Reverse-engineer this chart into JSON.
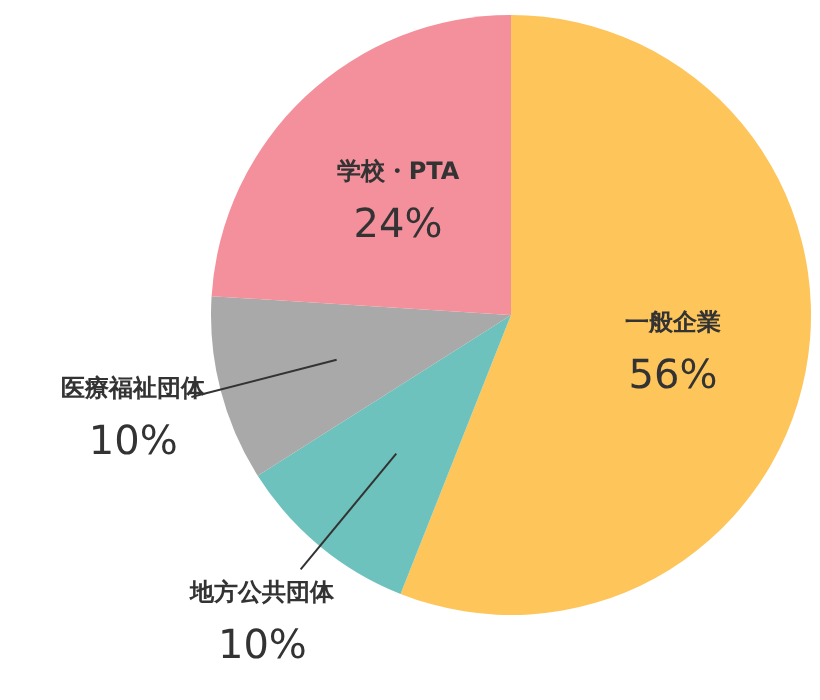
{
  "chart_data": {
    "type": "pie",
    "categories": [
      "一般企業",
      "地方公共団体",
      "医療福祉団体",
      "学校・PTA"
    ],
    "values": [
      56,
      10,
      10,
      24
    ],
    "colors": [
      "#fdc55a",
      "#6dc2bd",
      "#a9a9a9",
      "#f3909c"
    ],
    "value_labels": [
      "56%",
      "10%",
      "10%",
      "24%"
    ]
  }
}
